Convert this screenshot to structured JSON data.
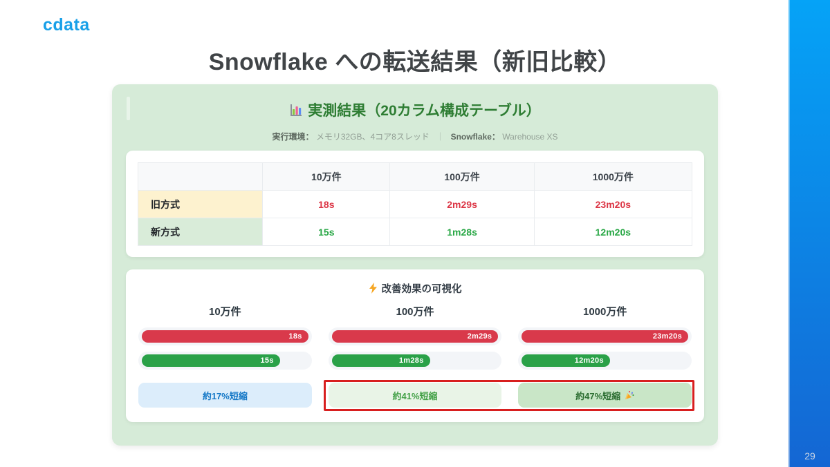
{
  "slide": {
    "logo_text": "cdata",
    "title": "Snowflake への転送結果（新旧比較）",
    "page_number": "29"
  },
  "panel": {
    "heading": "実測結果（20カラム構成テーブル）",
    "heading_icon": "bar-chart-icon",
    "env": {
      "label": "実行環境：",
      "value": "メモリ32GB、4コア8スレッド",
      "divider": "｜",
      "snowflake_label": "Snowflake：",
      "snowflake_value": "Warehouse XS"
    }
  },
  "results_table": {
    "col_headers": [
      "10万件",
      "100万件",
      "1000万件"
    ],
    "rows": [
      {
        "label": "旧方式",
        "v1": "18s",
        "v2": "2m29s",
        "v3": "23m20s"
      },
      {
        "label": "新方式",
        "v1": "15s",
        "v2": "1m28s",
        "v3": "12m20s"
      }
    ]
  },
  "visualization": {
    "heading": "改善効果の可視化",
    "heading_icon": "lightning-icon",
    "columns": [
      {
        "label": "10万件",
        "old_label": "18s",
        "new_label": "15s",
        "old_pct": 100,
        "new_pct": 83,
        "badge": "約17%短縮"
      },
      {
        "label": "100万件",
        "old_label": "2m29s",
        "new_label": "1m28s",
        "old_pct": 100,
        "new_pct": 59,
        "badge": "約41%短縮"
      },
      {
        "label": "1000万件",
        "old_label": "23m20s",
        "new_label": "12m20s",
        "old_pct": 100,
        "new_pct": 53,
        "badge": "約47%短縮",
        "badge_icon": "party-popper-icon"
      }
    ]
  },
  "chart_data": {
    "type": "bar",
    "orientation": "horizontal",
    "title": "改善効果の可視化",
    "categories": [
      "10万件",
      "100万件",
      "1000万件"
    ],
    "series": [
      {
        "name": "旧方式",
        "values_seconds": [
          18,
          149,
          1400
        ],
        "labels": [
          "18s",
          "2m29s",
          "23m20s"
        ],
        "color": "#d9394b"
      },
      {
        "name": "新方式",
        "values_seconds": [
          15,
          88,
          740
        ],
        "labels": [
          "15s",
          "1m28s",
          "12m20s"
        ],
        "color": "#2aa148"
      }
    ],
    "bar_fill_percent_of_track": {
      "old": [
        100,
        100,
        100
      ],
      "new": [
        83,
        59,
        53
      ]
    },
    "annotations": [
      "約17%短縮",
      "約41%短縮",
      "約47%短縮 🎉"
    ],
    "highlighted_annotations": [
      "約41%短縮",
      "約47%短縮 🎉"
    ],
    "legend_position": "none",
    "grid": false
  },
  "colors": {
    "panel_bg": "#d6ebd8",
    "panel_heading_text": "#2e7d33",
    "old_row_bg": "#fdf2cf",
    "new_row_bg": "#d9ecd9",
    "old_value_text": "#dc3545",
    "new_value_text": "#28a745",
    "old_bar": "#d9394b",
    "new_bar": "#2aa148",
    "badge_blue_bg": "#dcedfb",
    "badge_blue_text": "#1377c6",
    "badge_green_light_bg": "#e9f4e7",
    "badge_green_bg": "#c9e6c7",
    "highlight_border": "#d81f1f",
    "logo_blue": "#18a0e8",
    "side_bar_gradient_top": "#05a3f7",
    "side_bar_gradient_bottom": "#1466d3"
  }
}
